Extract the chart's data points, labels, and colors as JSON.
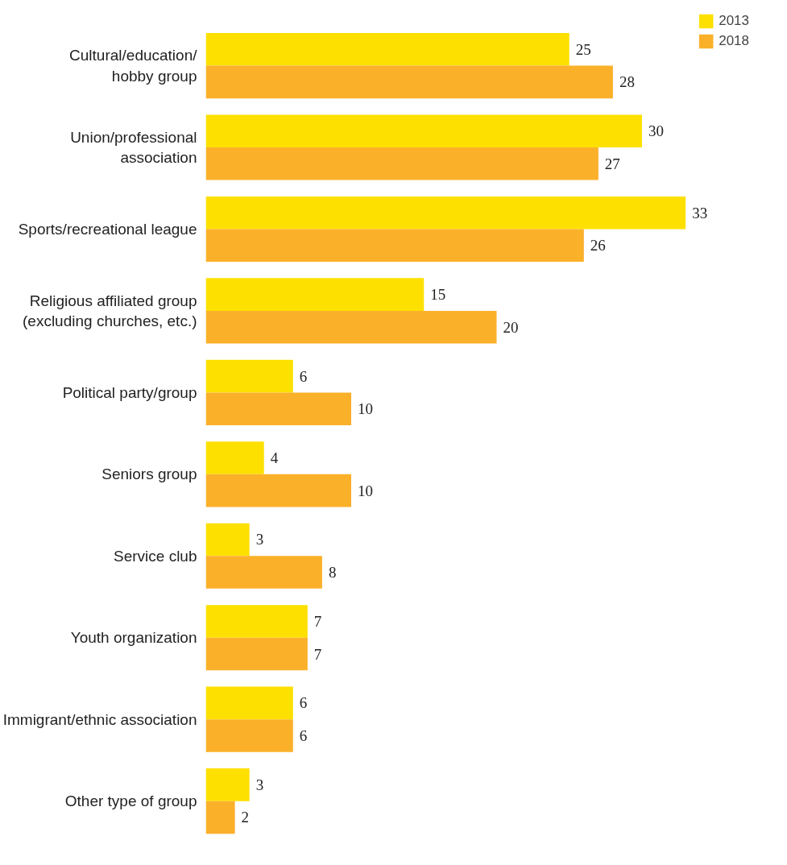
{
  "chart_data": {
    "type": "bar",
    "orientation": "horizontal",
    "data_labels": true,
    "legend": "top right",
    "grid": false,
    "tick_labels": "y",
    "categories": [
      "Cultural/education/\nhobby group",
      "Union/professional\nassociation",
      "Sports/recreational league",
      "Religious affiliated group\n(excluding churches, etc.)",
      "Political party/group",
      "Seniors group",
      "Service club",
      "Youth organization",
      "Immigrant/ethnic association",
      "Other type of group"
    ],
    "series": [
      {
        "name": "2013",
        "color": "#fde000",
        "values": [
          25,
          30,
          33,
          15,
          6,
          4,
          3,
          7,
          6,
          3
        ]
      },
      {
        "name": "2018",
        "color": "#fbb02a",
        "values": [
          28,
          27,
          26,
          20,
          10,
          10,
          8,
          7,
          6,
          2
        ]
      }
    ]
  }
}
